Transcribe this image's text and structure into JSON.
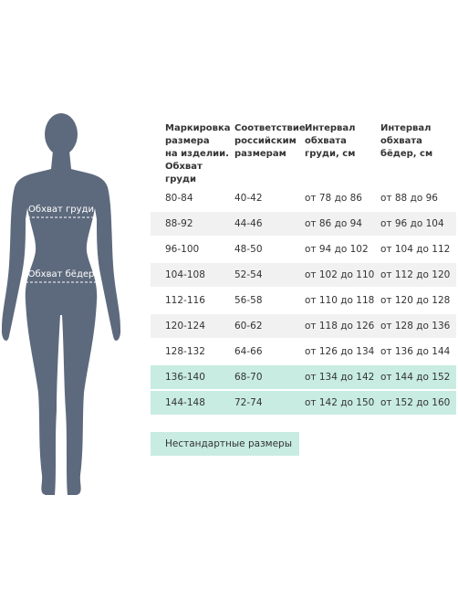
{
  "figure": {
    "chest_label": "Обхват груди",
    "hips_label": "Обхват бёдер"
  },
  "table": {
    "headers": [
      [
        "Маркировка",
        "размера",
        "на изделии.",
        "Обхват",
        "груди"
      ],
      [
        "Соответствие",
        "российским",
        "размерам"
      ],
      [
        "Интервал",
        "обхвата",
        "груди, см"
      ],
      [
        "Интервал",
        "обхвата",
        "бёдер, см"
      ]
    ],
    "rows": [
      [
        "80-84",
        "40-42",
        "от 78 до 86",
        "от 88 до 96"
      ],
      [
        "88-92",
        "44-46",
        "от 86 до 94",
        "от 96 до 104"
      ],
      [
        "96-100",
        "48-50",
        "от 94 до 102",
        "от 104 до 112"
      ],
      [
        "104-108",
        "52-54",
        "от 102 до 110",
        "от 112 до 120"
      ],
      [
        "112-116",
        "56-58",
        "от 110 до 118",
        "от 120 до 128"
      ],
      [
        "120-124",
        "60-62",
        "от 118 до 126",
        "от 128 до 136"
      ],
      [
        "128-132",
        "64-66",
        "от 126 до 134",
        "от 136 до 144"
      ],
      [
        "136-140",
        "68-70",
        "от 134 до 142",
        "от 144 до 152"
      ],
      [
        "144-148",
        "72-74",
        "от 142 до 150",
        "от 152 до 160"
      ]
    ],
    "nonstandard_rows": [
      7,
      8
    ]
  },
  "legend": {
    "label": "Нестандартные размеры"
  }
}
